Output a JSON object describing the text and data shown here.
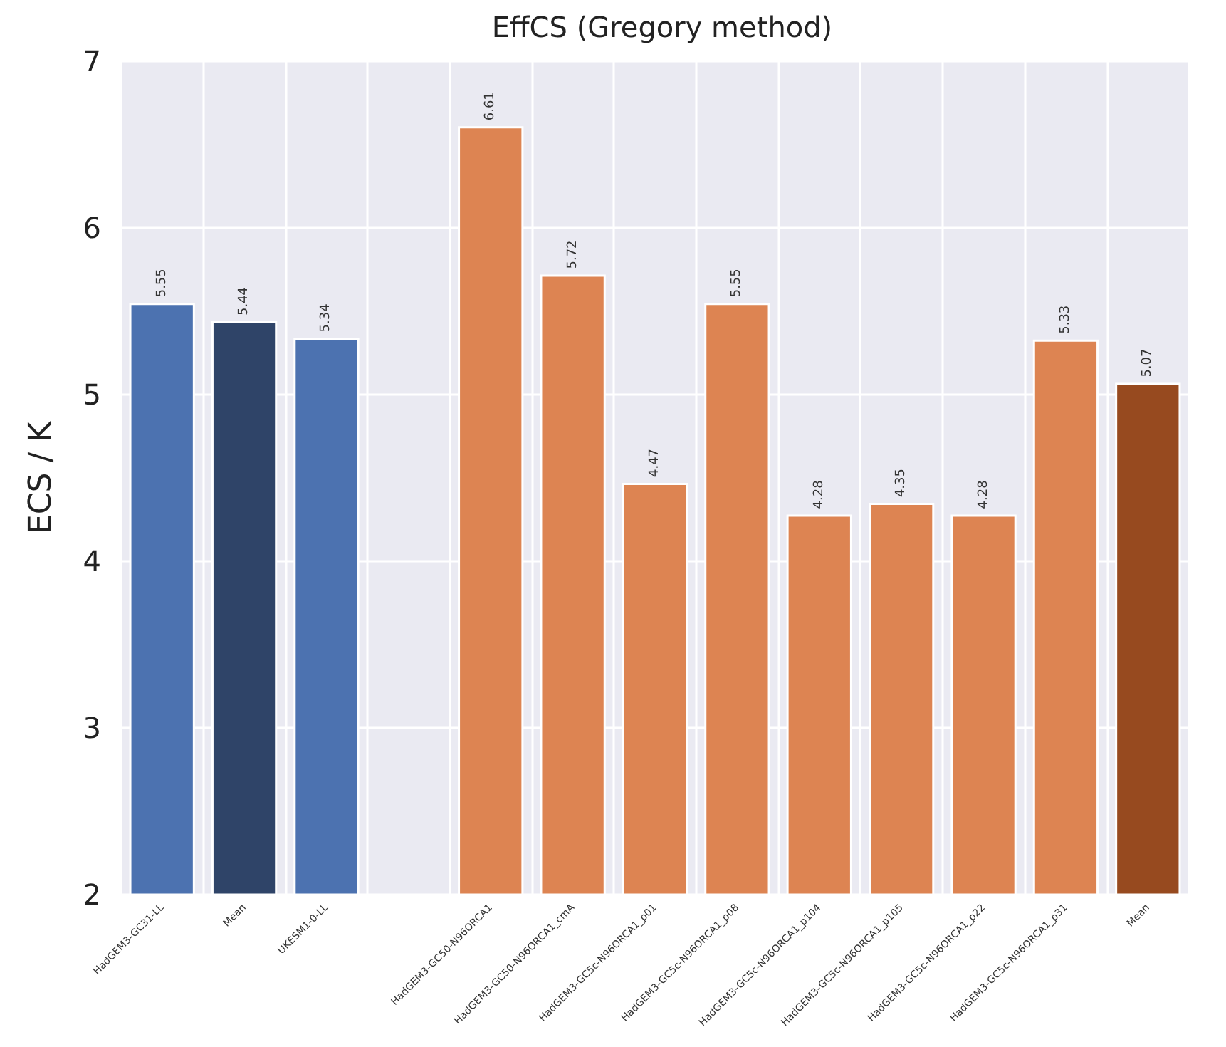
{
  "chart_data": {
    "type": "bar",
    "title": "EffCS (Gregory method)",
    "ylabel": "ECS / K",
    "categories": [
      "HadGEM3-GC31-LL",
      "Mean",
      "UKESM1-0-LL",
      null,
      "HadGEM3-GC50-N96ORCA1",
      "HadGEM3-GC50-N96ORCA1_cmA",
      "HadGEM3-GC5c-N96ORCA1_p01",
      "HadGEM3-GC5c-N96ORCA1_p08",
      "HadGEM3-GC5c-N96ORCA1_p104",
      "HadGEM3-GC5c-N96ORCA1_p105",
      "HadGEM3-GC5c-N96ORCA1_p22",
      "HadGEM3-GC5c-N96ORCA1_p31",
      "Mean"
    ],
    "values": [
      5.55,
      5.44,
      5.34,
      null,
      6.61,
      5.72,
      4.47,
      5.55,
      4.28,
      4.35,
      4.28,
      5.33,
      5.07
    ],
    "colors": [
      "#4c72b0",
      "#2f4468",
      "#4c72b0",
      null,
      "#dd8452",
      "#dd8452",
      "#dd8452",
      "#dd8452",
      "#dd8452",
      "#dd8452",
      "#dd8452",
      "#dd8452",
      "#974a1f"
    ],
    "data_labels": true,
    "ylim": [
      2,
      7
    ],
    "yticks": [
      2,
      3,
      4,
      5,
      6,
      7
    ],
    "grid": true
  }
}
